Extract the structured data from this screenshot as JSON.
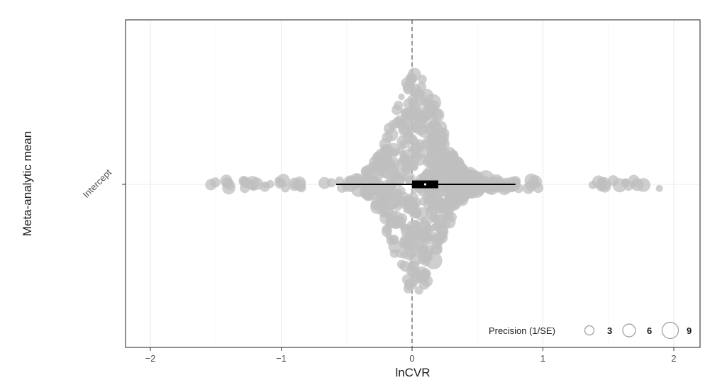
{
  "chart_data": {
    "type": "orchard",
    "xlabel": "lnCVR",
    "ylabel": "Meta-analytic mean",
    "categories": [
      "Intercept"
    ],
    "xlim": [
      -2.2,
      2.2
    ],
    "x_ticks": [
      -2,
      -1,
      0,
      1,
      2
    ],
    "x_tick_labels": [
      "−2",
      "−1",
      "0",
      "1",
      "2"
    ],
    "reference_line_x": 0,
    "grid": true,
    "estimate": {
      "category": "Intercept",
      "mean": 0.1,
      "ci": [
        0.0,
        0.2
      ],
      "pi": [
        -0.58,
        0.79
      ]
    },
    "points": {
      "n": 700,
      "x_range": [
        -1.55,
        1.92
      ],
      "color": "#bfbfbf",
      "size_variable": "Precision (1/SE)"
    },
    "legend": {
      "title": "Precision (1/SE)",
      "entries": [
        "3",
        "6",
        "9"
      ],
      "placement": "bottom-right"
    },
    "colors": {
      "points": "#bfbfbf",
      "interval": "#000000",
      "grid": "#ebebeb",
      "panel_border": "#333333",
      "reference_line": "#555555"
    }
  }
}
